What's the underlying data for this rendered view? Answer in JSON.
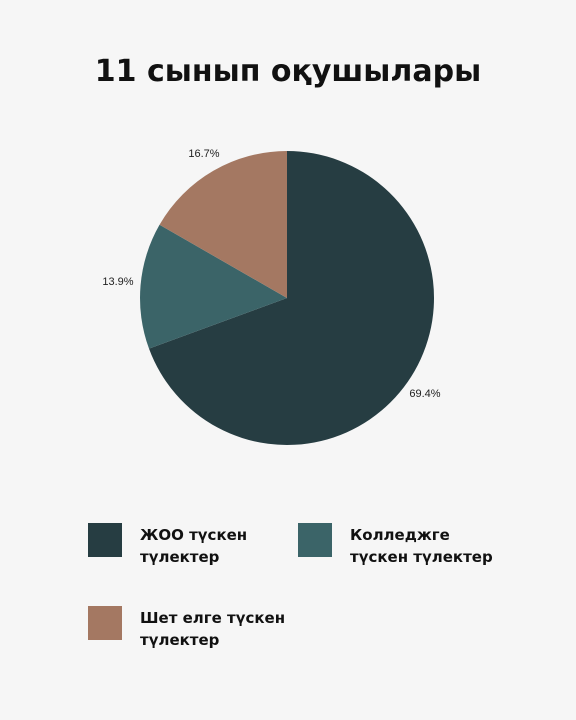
{
  "chart_data": {
    "type": "pie",
    "title": "11 сынып оқушылары",
    "series": [
      {
        "name": "ЖОО түскен түлектер",
        "value": 69.4,
        "label": "69.4%",
        "color": "#263d42"
      },
      {
        "name": "Колледжге түскен түлектер",
        "value": 13.9,
        "label": "13.9%",
        "color": "#3b6468"
      },
      {
        "name": "Шет елге түскен түлектер",
        "value": 16.7,
        "label": "16.7%",
        "color": "#a47862"
      }
    ],
    "start": "12 o'clock",
    "direction": "clockwise",
    "legend_position": "bottom"
  }
}
